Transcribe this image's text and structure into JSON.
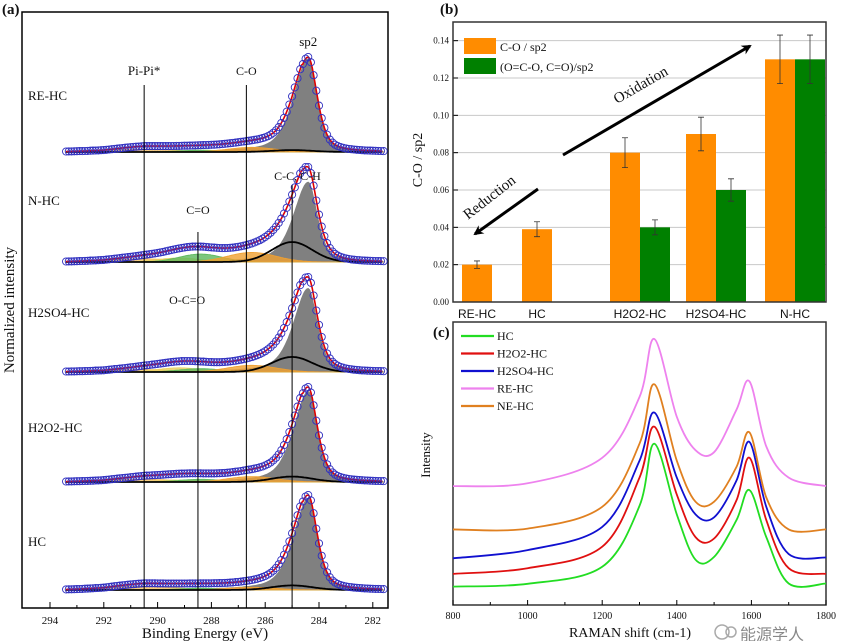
{
  "chart_data": [
    {
      "panel": "(a)",
      "type": "line",
      "xlabel": "Binding Energy (eV)",
      "ylabel": "Normalized intensity",
      "xlim": [
        294.5,
        281.5
      ],
      "x_reversed": true,
      "xticks": [
        294,
        292,
        290,
        288,
        286,
        284,
        282
      ],
      "reference_lines": [
        {
          "label": "Pi-Pi*",
          "x": 290.5
        },
        {
          "label": "C=O",
          "x": 288.5
        },
        {
          "label": "O-C=O",
          "x": 288.8
        },
        {
          "label": "C-O",
          "x": 286.7
        },
        {
          "label": "C-C, C-H",
          "x": 285.0
        },
        {
          "label": "sp2",
          "x": 284.4
        }
      ],
      "component_colors": {
        "sp2": "#808080",
        "C-C, C-H": "#000000",
        "C-O": "#f0a030",
        "C=O": "#5cb85c",
        "O-C=O": "#e8d060",
        "Pi-Pi*": "#f5c060",
        "envelope": "#e00000",
        "data_points": "#3030c0"
      },
      "samples": [
        {
          "name": "RE-HC",
          "components": {
            "sp2": 1.0,
            "C-C, C-H": 0.02,
            "C-O": 0.05,
            "C=O": 0.02,
            "O-C=O": 0.0,
            "Pi-Pi*": 0.03
          }
        },
        {
          "name": "N-HC",
          "components": {
            "sp2": 1.0,
            "C-C, C-H": 0.25,
            "C-O": 0.12,
            "C=O": 0.1,
            "O-C=O": 0.05,
            "Pi-Pi*": 0.04
          }
        },
        {
          "name": "H2SO4-HC",
          "components": {
            "sp2": 1.0,
            "C-C, C-H": 0.18,
            "C-O": 0.08,
            "C=O": 0.04,
            "O-C=O": 0.05,
            "Pi-Pi*": 0.03
          }
        },
        {
          "name": "H2O2-HC",
          "components": {
            "sp2": 1.0,
            "C-C, C-H": 0.06,
            "C-O": 0.06,
            "C=O": 0.03,
            "O-C=O": 0.02,
            "Pi-Pi*": 0.03
          }
        },
        {
          "name": "HC",
          "components": {
            "sp2": 1.0,
            "C-C, C-H": 0.05,
            "C-O": 0.03,
            "C=O": 0.02,
            "O-C=O": 0.0,
            "Pi-Pi*": 0.04
          }
        }
      ]
    },
    {
      "panel": "(b)",
      "type": "bar",
      "ylabel": "C-O / sp2",
      "ylim": [
        0,
        0.15
      ],
      "yticks": [
        0.0,
        0.02,
        0.04,
        0.06,
        0.08,
        0.1,
        0.12,
        0.14
      ],
      "grid": true,
      "legend_placement": "top-left",
      "categories": [
        "RE-HC",
        "HC",
        "H2O2-HC",
        "H2SO4-HC",
        "N-HC"
      ],
      "series": [
        {
          "name": "C-O / sp2",
          "color": "#ff8c00",
          "values": [
            0.02,
            0.039,
            0.08,
            0.09,
            0.13
          ],
          "errors": [
            0.002,
            0.004,
            0.008,
            0.009,
            0.013
          ]
        },
        {
          "name": "(O=C-O, C=O)/sp2",
          "color": "#008000",
          "values": [
            null,
            null,
            0.04,
            0.06,
            0.13
          ],
          "errors": [
            null,
            null,
            0.004,
            0.006,
            0.013
          ]
        }
      ],
      "annotations": [
        {
          "text": "Oxidation",
          "direction": "up-right"
        },
        {
          "text": "Reduction",
          "direction": "down-left"
        }
      ]
    },
    {
      "panel": "(c)",
      "type": "line",
      "xlabel": "RAMAN shift (cm-1)",
      "ylabel": "Intensity",
      "xlim": [
        800,
        1800
      ],
      "xticks": [
        800,
        1000,
        1200,
        1400,
        1600,
        1800
      ],
      "legend_placement": "top-left",
      "x": [
        800,
        1000,
        1200,
        1300,
        1340,
        1400,
        1450,
        1500,
        1560,
        1595,
        1640,
        1700,
        1800
      ],
      "series": [
        {
          "name": "HC",
          "color": "#22dd22",
          "values": [
            6.5,
            7.5,
            13.5,
            35,
            57,
            32,
            16,
            17,
            30,
            40.6,
            24,
            7.6,
            7.6
          ]
        },
        {
          "name": "H2O2-HC",
          "color": "#e01010",
          "values": [
            11,
            13,
            20.6,
            45,
            63,
            39,
            24,
            23.5,
            37,
            52,
            30,
            13,
            11
          ]
        },
        {
          "name": "H2SO4-HC",
          "color": "#1010d0",
          "values": [
            16.5,
            19.4,
            27.6,
            51,
            68,
            45,
            32,
            31,
            44,
            57.6,
            34.7,
            18,
            16.8
          ]
        },
        {
          "name": "RE-HC",
          "color": "#ee82ee",
          "values": [
            42,
            43,
            52,
            73.5,
            94,
            66.5,
            54.7,
            54,
            69,
            79,
            56,
            45,
            42
          ]
        },
        {
          "name": "NE-HC",
          "color": "#e08020",
          "values": [
            26.7,
            27,
            34.7,
            57,
            78,
            51,
            36.5,
            36.5,
            48.8,
            61,
            38,
            26.7,
            26.7
          ]
        }
      ]
    }
  ],
  "watermark": "能源学人"
}
